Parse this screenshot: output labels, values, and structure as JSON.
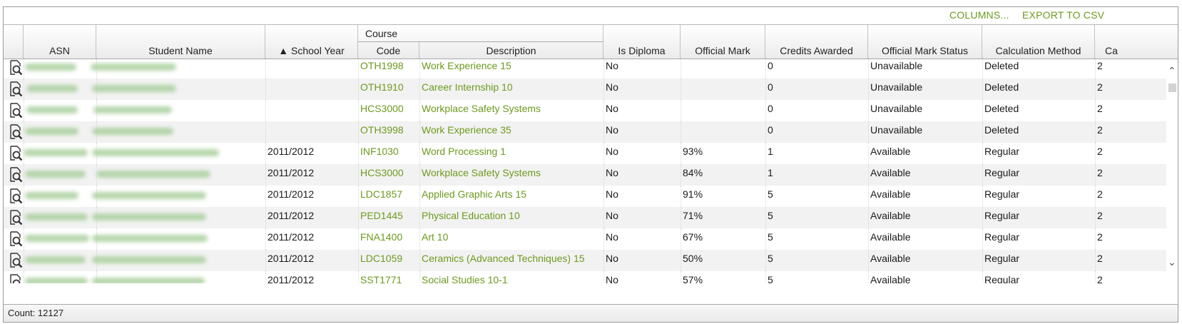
{
  "toolbar": {
    "columns_label": "COLUMNS...",
    "export_label": "EXPORT TO CSV"
  },
  "header": {
    "asn": "ASN",
    "student_name": "Student Name",
    "sort_indicator": "▲",
    "school_year": "School Year",
    "course_group": "Course",
    "code": "Code",
    "description": "Description",
    "is_diploma": "Is Diploma",
    "official_mark": "Official Mark",
    "credits_awarded": "Credits Awarded",
    "official_mark_status": "Official Mark Status",
    "calculation_method": "Calculation Method",
    "truncated_next": "Ca"
  },
  "rows": [
    {
      "school_year": "",
      "code": "OTH1998",
      "description": "Work Experience 15",
      "is_diploma": "No",
      "official_mark": "",
      "credits": "0",
      "status": "Unavailable",
      "method": "Deleted",
      "next": "2"
    },
    {
      "school_year": "",
      "code": "OTH1910",
      "description": "Career Internship 10",
      "is_diploma": "No",
      "official_mark": "",
      "credits": "0",
      "status": "Unavailable",
      "method": "Deleted",
      "next": "2"
    },
    {
      "school_year": "",
      "code": "HCS3000",
      "description": "Workplace Safety Systems",
      "is_diploma": "No",
      "official_mark": "",
      "credits": "0",
      "status": "Unavailable",
      "method": "Deleted",
      "next": "2"
    },
    {
      "school_year": "",
      "code": "OTH3998",
      "description": "Work Experience 35",
      "is_diploma": "No",
      "official_mark": "",
      "credits": "0",
      "status": "Unavailable",
      "method": "Deleted",
      "next": "2"
    },
    {
      "school_year": "2011/2012",
      "code": "INF1030",
      "description": "Word Processing 1",
      "is_diploma": "No",
      "official_mark": "93%",
      "credits": "1",
      "status": "Available",
      "method": "Regular",
      "next": "2"
    },
    {
      "school_year": "2011/2012",
      "code": "HCS3000",
      "description": "Workplace Safety Systems",
      "is_diploma": "No",
      "official_mark": "84%",
      "credits": "1",
      "status": "Available",
      "method": "Regular",
      "next": "2"
    },
    {
      "school_year": "2011/2012",
      "code": "LDC1857",
      "description": "Applied Graphic Arts 15",
      "is_diploma": "No",
      "official_mark": "91%",
      "credits": "5",
      "status": "Available",
      "method": "Regular",
      "next": "2"
    },
    {
      "school_year": "2011/2012",
      "code": "PED1445",
      "description": "Physical Education 10",
      "is_diploma": "No",
      "official_mark": "71%",
      "credits": "5",
      "status": "Available",
      "method": "Regular",
      "next": "2"
    },
    {
      "school_year": "2011/2012",
      "code": "FNA1400",
      "description": "Art 10",
      "is_diploma": "No",
      "official_mark": "67%",
      "credits": "5",
      "status": "Available",
      "method": "Regular",
      "next": "2"
    },
    {
      "school_year": "2011/2012",
      "code": "LDC1059",
      "description": "Ceramics (Advanced Techniques) 15",
      "is_diploma": "No",
      "official_mark": "50%",
      "credits": "5",
      "status": "Available",
      "method": "Regular",
      "next": "2"
    },
    {
      "school_year": "2011/2012",
      "code": "SST1771",
      "description": "Social Studies 10-1",
      "is_diploma": "No",
      "official_mark": "57%",
      "credits": "5",
      "status": "Available",
      "method": "Regular",
      "next": "2"
    }
  ],
  "footer": {
    "count": "Count: 12127"
  },
  "icons": {
    "row_action": "magnifier-document-icon",
    "scroll_left": "chevron-left-icon",
    "scroll_right": "chevron-right-icon",
    "scroll_up": "chevron-up-icon",
    "scroll_down": "chevron-down-icon"
  },
  "colors": {
    "link": "#6d9a1f",
    "alt_row": "#f2f2f2",
    "redacted": "#a9cf9d"
  }
}
